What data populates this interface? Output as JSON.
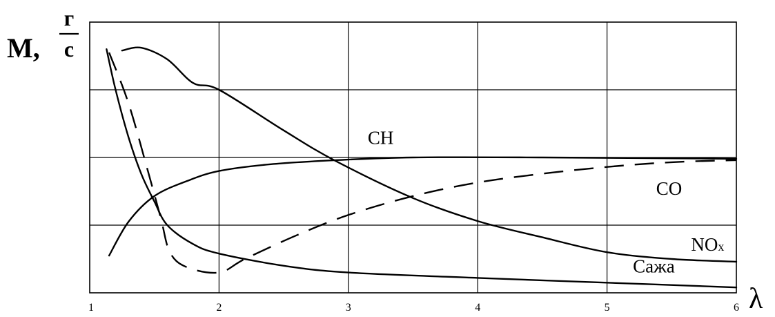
{
  "chart_data": {
    "type": "line",
    "title": "",
    "ylabel": {
      "main": "M,",
      "numerator": "г",
      "denominator": "с"
    },
    "xlabel": "λ",
    "xlim": [
      1,
      6
    ],
    "ylim": [
      0,
      4
    ],
    "x_ticks": [
      "1",
      "2",
      "3",
      "4",
      "5",
      "6"
    ],
    "y_ticks_labeled": false,
    "grid": true,
    "series": [
      {
        "name": "CH",
        "style": "solid",
        "label_at": [
          3.15,
          2.2
        ],
        "points": [
          [
            1.15,
            0.55
          ],
          [
            1.3,
            1.05
          ],
          [
            1.5,
            1.43
          ],
          [
            1.75,
            1.65
          ],
          [
            2.0,
            1.8
          ],
          [
            2.4,
            1.9
          ],
          [
            2.9,
            1.96
          ],
          [
            3.5,
            2.0
          ],
          [
            4.5,
            2.0
          ],
          [
            6.0,
            1.98
          ]
        ]
      },
      {
        "name": "CO",
        "style": "dashed",
        "label_at": [
          5.38,
          1.45
        ],
        "points": [
          [
            1.15,
            3.55
          ],
          [
            1.3,
            2.8
          ],
          [
            1.45,
            1.8
          ],
          [
            1.55,
            1.1
          ],
          [
            1.62,
            0.6
          ],
          [
            1.75,
            0.38
          ],
          [
            2.0,
            0.3
          ],
          [
            2.2,
            0.5
          ],
          [
            2.6,
            0.85
          ],
          [
            3.0,
            1.15
          ],
          [
            3.5,
            1.43
          ],
          [
            4.0,
            1.63
          ],
          [
            4.5,
            1.76
          ],
          [
            5.0,
            1.86
          ],
          [
            5.5,
            1.93
          ],
          [
            6.0,
            1.96
          ]
        ]
      },
      {
        "name": "NOx",
        "style": "solid",
        "label_at": [
          5.65,
          0.62
        ],
        "points": [
          [
            1.25,
            3.58
          ],
          [
            1.4,
            3.62
          ],
          [
            1.6,
            3.45
          ],
          [
            1.8,
            3.1
          ],
          [
            2.0,
            3.0
          ],
          [
            2.5,
            2.4
          ],
          [
            2.9,
            1.95
          ],
          [
            3.5,
            1.4
          ],
          [
            4.0,
            1.06
          ],
          [
            4.5,
            0.82
          ],
          [
            5.0,
            0.6
          ],
          [
            5.5,
            0.5
          ],
          [
            6.0,
            0.46
          ]
        ]
      },
      {
        "name": "Сажа",
        "style": "solid",
        "label_at": [
          5.2,
          0.3
        ],
        "points": [
          [
            1.13,
            3.6
          ],
          [
            1.2,
            3.0
          ],
          [
            1.3,
            2.3
          ],
          [
            1.4,
            1.75
          ],
          [
            1.5,
            1.35
          ],
          [
            1.6,
            1.0
          ],
          [
            1.8,
            0.72
          ],
          [
            2.0,
            0.58
          ],
          [
            2.5,
            0.4
          ],
          [
            3.0,
            0.3
          ],
          [
            4.0,
            0.22
          ],
          [
            5.0,
            0.15
          ],
          [
            6.0,
            0.08
          ]
        ]
      }
    ],
    "curve_labels": {
      "CH": "CH",
      "CO": "CO",
      "NOx_main": "NO",
      "NOx_sub": "x",
      "soot": "Сажа"
    }
  }
}
